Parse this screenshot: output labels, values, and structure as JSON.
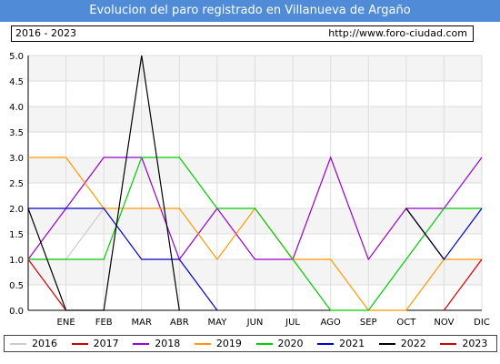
{
  "header": {
    "title": "Evolucion del paro registrado en Villanueva de Argaño",
    "range": "2016 - 2023",
    "url": "http://www.foro-ciudad.com"
  },
  "chart_data": {
    "type": "line",
    "title": "Evolucion del paro registrado en Villanueva de Argaño",
    "xlabel": "",
    "ylabel": "",
    "categories": [
      "",
      "ENE",
      "FEB",
      "MAR",
      "ABR",
      "MAY",
      "JUN",
      "JUL",
      "AGO",
      "SEP",
      "OCT",
      "NOV",
      "DIC"
    ],
    "ylim": [
      0,
      5
    ],
    "yticks": [
      "0.0",
      "0.5",
      "1.0",
      "1.5",
      "2.0",
      "2.5",
      "3.0",
      "3.5",
      "4.0",
      "4.5",
      "5.0"
    ],
    "grid": true,
    "legend_position": "bottom",
    "series": [
      {
        "name": "2016",
        "color": "#cccccc",
        "values": [
          1,
          1,
          2,
          null,
          1,
          2,
          null,
          null,
          null,
          null,
          null,
          null,
          null
        ]
      },
      {
        "name": "2017",
        "color": "#cc0000",
        "values": [
          1,
          0,
          null,
          null,
          null,
          null,
          null,
          null,
          null,
          null,
          null,
          null,
          null
        ]
      },
      {
        "name": "2018",
        "color": "#9900cc",
        "values": [
          1,
          2,
          3,
          3,
          1,
          2,
          1,
          1,
          3,
          1,
          2,
          2,
          3
        ]
      },
      {
        "name": "2019",
        "color": "#ff9900",
        "values": [
          3,
          3,
          2,
          2,
          2,
          1,
          2,
          1,
          1,
          0,
          0,
          1,
          1
        ]
      },
      {
        "name": "2020",
        "color": "#00cc00",
        "values": [
          1,
          1,
          1,
          3,
          3,
          2,
          2,
          1,
          0,
          0,
          1,
          2,
          2
        ]
      },
      {
        "name": "2021",
        "color": "#0000cc",
        "values": [
          2,
          2,
          2,
          1,
          1,
          0,
          null,
          null,
          null,
          null,
          2,
          1,
          2
        ]
      },
      {
        "name": "2022",
        "color": "#000000",
        "values": [
          2,
          0,
          0,
          5,
          0,
          null,
          null,
          null,
          null,
          null,
          2,
          1,
          null
        ]
      },
      {
        "name": "2023",
        "color": "#cc0000",
        "values": [
          null,
          null,
          null,
          null,
          null,
          null,
          null,
          null,
          null,
          null,
          null,
          0,
          1
        ]
      }
    ]
  }
}
